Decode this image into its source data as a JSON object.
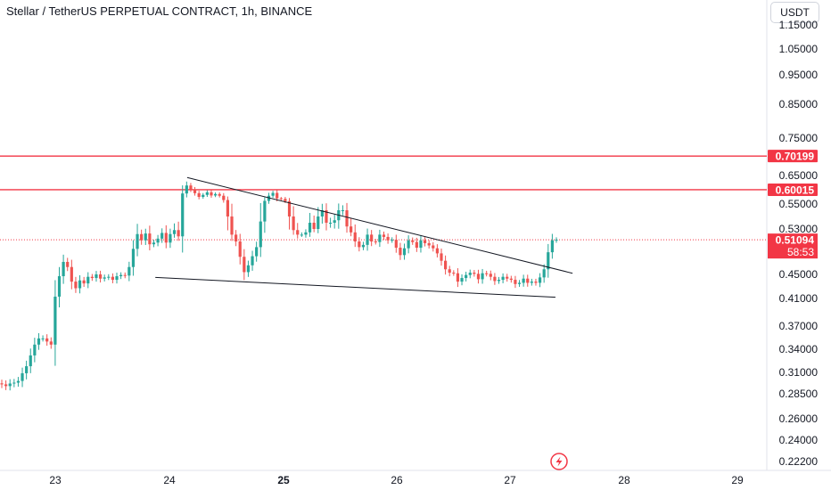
{
  "header": {
    "title": "Stellar / TetherUS PERPETUAL CONTRACT, 1h, BINANCE",
    "currency": "USDT"
  },
  "colors": {
    "up": "#26a69a",
    "down": "#ef5350",
    "level": "#f23645",
    "trendline": "#131722",
    "grid": "#f0f3fa",
    "axis_text": "#131722"
  },
  "icons": {
    "flash": "lightning-icon"
  },
  "chart_data": {
    "type": "candlestick",
    "y_ticks": [
      "1.15000",
      "1.05000",
      "0.95000",
      "0.85000",
      "0.75000",
      "0.65000",
      "0.55000",
      "0.53000",
      "0.45000",
      "0.41000",
      "0.37000",
      "0.34000",
      "0.31000",
      "0.28500",
      "0.26000",
      "0.24000",
      "0.22200"
    ],
    "x_ticks": [
      "23",
      "24",
      "25",
      "26",
      "27",
      "28",
      "29"
    ],
    "bold_x_ticks": [
      "25"
    ],
    "horizontal_levels": [
      {
        "value": 0.70199,
        "label": "0.70199"
      },
      {
        "value": 0.60015,
        "label": "0.60015"
      }
    ],
    "last_price": {
      "value": 0.51094,
      "label": "0.51094",
      "countdown": "58:53"
    },
    "trendlines": [
      {
        "name": "upper",
        "from": [
          24.16,
          0.643
        ],
        "to": [
          27.55,
          0.452
        ]
      },
      {
        "name": "lower",
        "from": [
          23.88,
          0.445
        ],
        "to": [
          27.4,
          0.412
        ]
      }
    ],
    "candles_close": [
      0.296,
      0.294,
      0.297,
      0.298,
      0.3,
      0.309,
      0.318,
      0.332,
      0.346,
      0.354,
      0.354,
      0.35,
      0.346,
      0.413,
      0.447,
      0.472,
      0.463,
      0.438,
      0.427,
      0.44,
      0.435,
      0.446,
      0.444,
      0.45,
      0.443,
      0.445,
      0.446,
      0.441,
      0.447,
      0.449,
      0.448,
      0.463,
      0.495,
      0.521,
      0.51,
      0.522,
      0.503,
      0.506,
      0.513,
      0.523,
      0.506,
      0.521,
      0.528,
      0.517,
      0.587,
      0.615,
      0.601,
      0.588,
      0.575,
      0.582,
      0.591,
      0.58,
      0.585,
      0.579,
      0.564,
      0.54,
      0.52,
      0.508,
      0.481,
      0.454,
      0.466,
      0.482,
      0.498,
      0.536,
      0.561,
      0.579,
      0.589,
      0.57,
      0.568,
      0.56,
      0.54,
      0.528,
      0.52,
      0.52,
      0.524,
      0.535,
      0.53,
      0.54,
      0.545,
      0.535,
      0.535,
      0.537,
      0.545,
      0.545,
      0.532,
      0.524,
      0.508,
      0.498,
      0.502,
      0.52,
      0.508,
      0.507,
      0.52,
      0.516,
      0.51,
      0.511,
      0.497,
      0.484,
      0.496,
      0.51,
      0.507,
      0.497,
      0.51,
      0.505,
      0.501,
      0.496,
      0.487,
      0.474,
      0.459,
      0.453,
      0.452,
      0.438,
      0.444,
      0.449,
      0.453,
      0.451,
      0.442,
      0.452,
      0.451,
      0.446,
      0.439,
      0.441,
      0.446,
      0.443,
      0.441,
      0.434,
      0.436,
      0.443,
      0.436,
      0.438,
      0.436,
      0.445,
      0.459,
      0.489,
      0.51,
      0.511
    ]
  }
}
